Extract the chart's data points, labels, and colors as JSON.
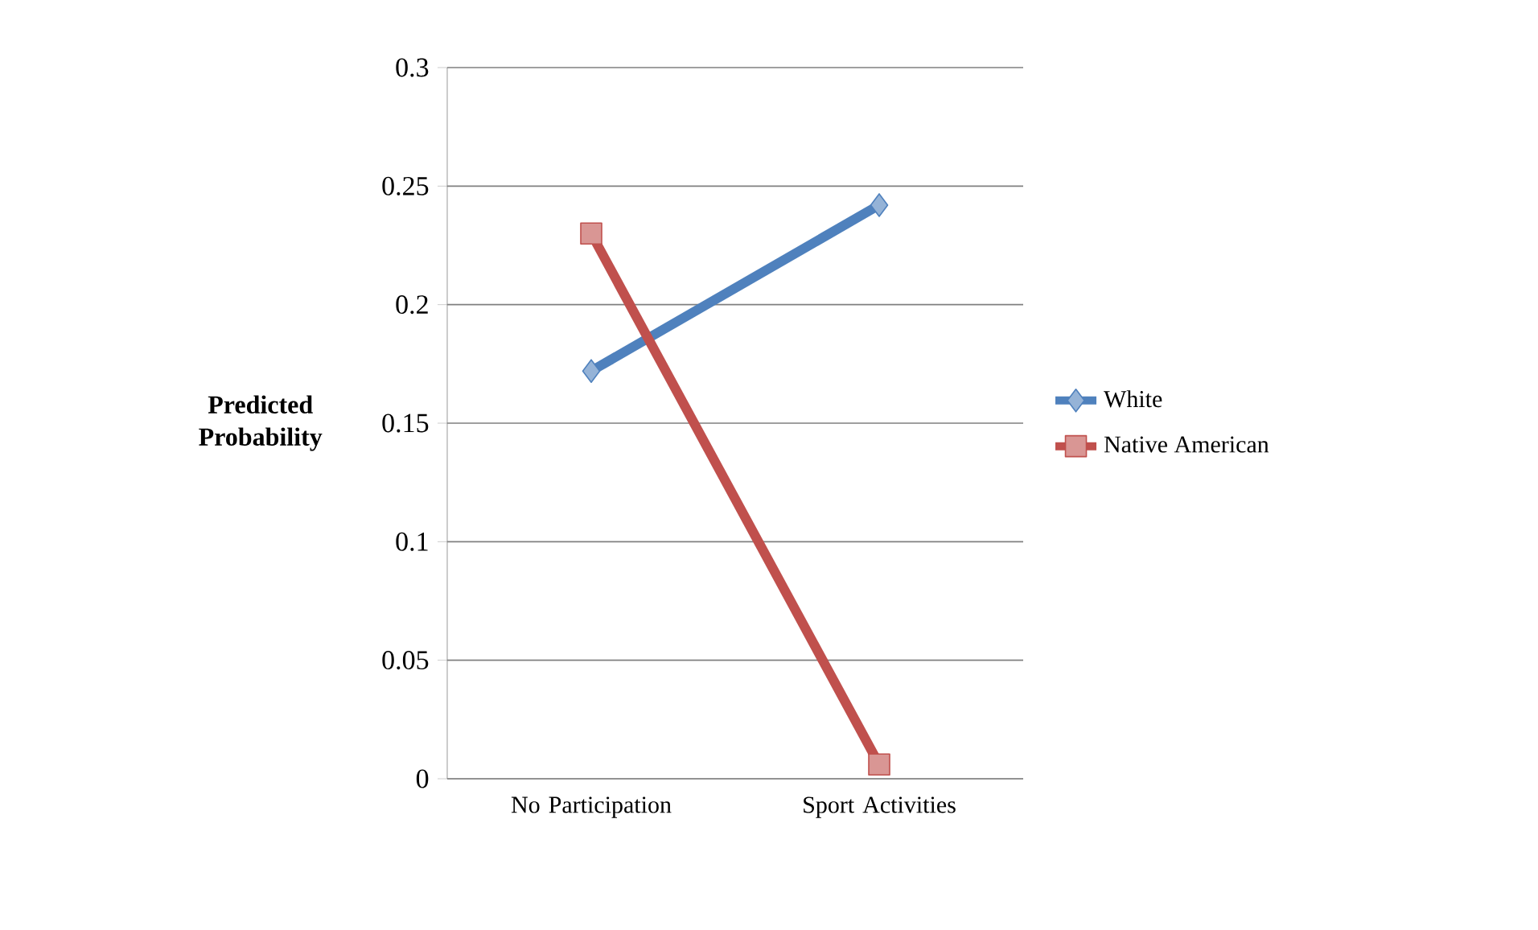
{
  "chart_data": {
    "type": "line",
    "ylabel": "Predicted Probability",
    "categories": [
      "No Participation",
      "Sport Activities"
    ],
    "series": [
      {
        "name": "White",
        "color": "#4f81bd",
        "values": [
          0.172,
          0.242
        ],
        "marker": "diamond"
      },
      {
        "name": "Native American",
        "color": "#c0504d",
        "values": [
          0.23,
          0.006
        ],
        "marker": "square"
      }
    ],
    "ylim": [
      0,
      0.3
    ],
    "yticks": [
      0,
      0.05,
      0.1,
      0.15,
      0.2,
      0.25,
      0.3
    ],
    "grid": "y",
    "legend": "right"
  }
}
